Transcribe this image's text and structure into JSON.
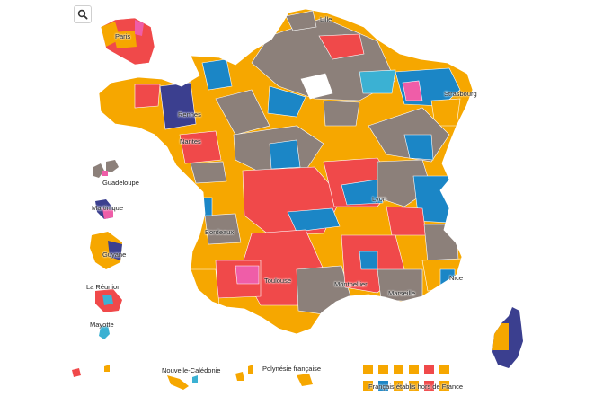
{
  "colors": {
    "orange": "#f6a700",
    "grey": "#8c807a",
    "red": "#f0494a",
    "blue": "#1b86c6",
    "navy": "#3b3f8f",
    "pink": "#ef5da8",
    "cyan": "#3bb1d3",
    "white": "#ffffff"
  },
  "toolbar": {
    "search_icon": "search-icon"
  },
  "cities": {
    "paris": "Paris",
    "lille": "Lille",
    "strasbourg": "Strasbourg",
    "rennes": "Rennes",
    "nantes": "Nantes",
    "bordeaux": "Bordeaux",
    "lyon": "Lyon",
    "toulouse": "Toulouse",
    "montpellier": "Montpellier",
    "marseille": "Marseille",
    "nice": "Nice"
  },
  "overseas": {
    "guadeloupe": "Guadeloupe",
    "martinique": "Martinique",
    "guyane": "Guyane",
    "reunion": "La Réunion",
    "mayotte": "Mayotte",
    "nouvelle_caledonie": "Nouvelle-Calédonie",
    "polynesie": "Polynésie française",
    "francais_etranger": "Français établis hors de France"
  }
}
